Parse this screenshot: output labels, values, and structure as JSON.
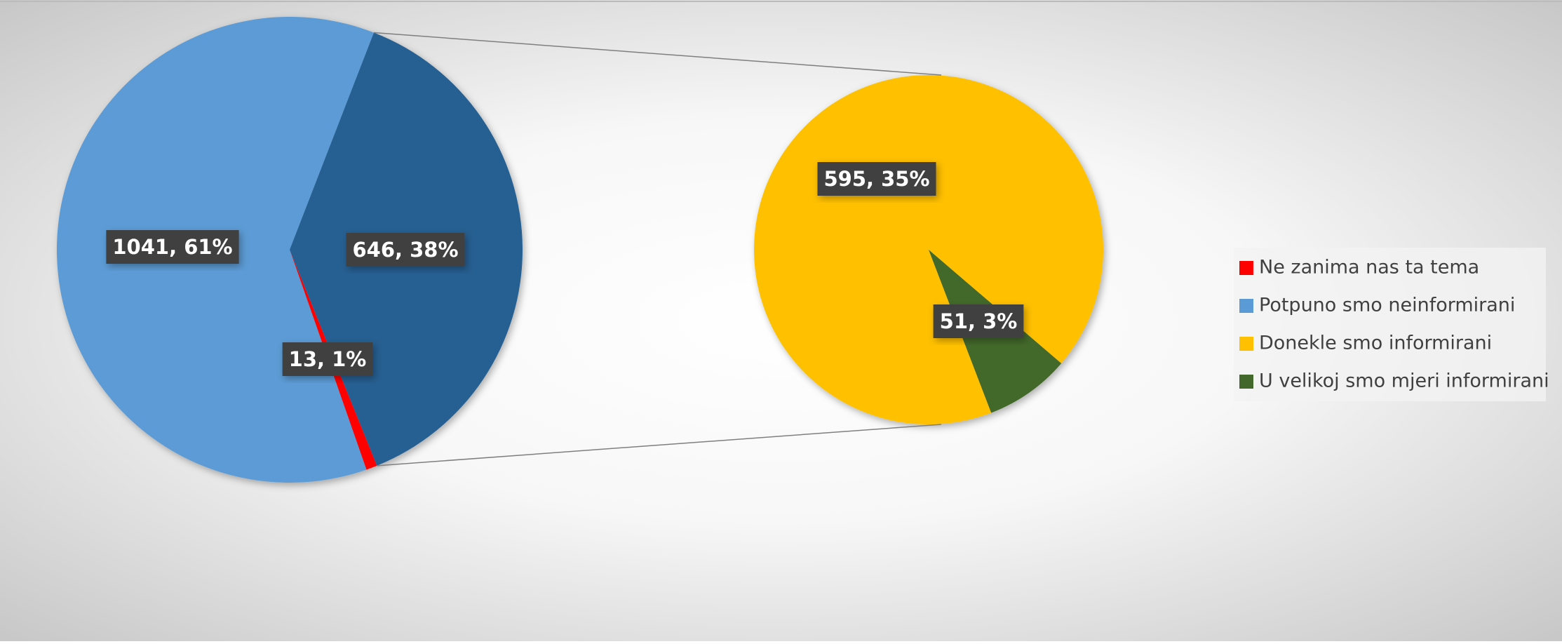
{
  "chart_data": [
    {
      "type": "pie",
      "categories": [
        "Ne zanima nas ta tema",
        "Potpuno smo neinformirani",
        null
      ],
      "values": [
        13,
        1041,
        646
      ],
      "value_labels": [
        "13, 1%",
        "1041, 61%",
        "646, 38%"
      ],
      "colors": [
        "#ff0000",
        "#5b9bd5",
        "#255e91"
      ]
    },
    {
      "type": "pie",
      "categories": [
        "Donekle smo informirani",
        "U velikoj smo mjeri informirani"
      ],
      "values": [
        595,
        51
      ],
      "value_labels": [
        "595, 35%",
        "51, 3%"
      ],
      "colors": [
        "#ffc000",
        "#43682b"
      ]
    }
  ]
}
